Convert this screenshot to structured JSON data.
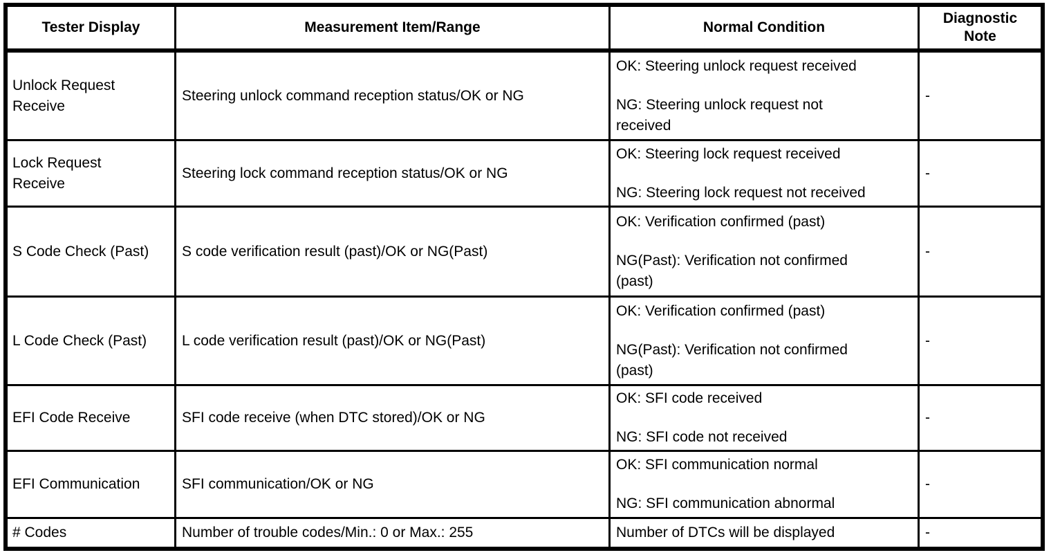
{
  "colors": {
    "border": "#000000",
    "background": "#ffffff",
    "text": "#000000"
  },
  "header": {
    "columns": [
      "Tester Display",
      "Measurement Item/Range",
      "Normal Condition",
      "Diagnostic Note"
    ]
  },
  "rows": [
    {
      "tester_display": "Unlock Request Receive",
      "measurement_item_range": "Steering unlock command reception status/OK or NG",
      "normal_condition": [
        "OK: Steering unlock request received",
        "NG: Steering unlock request not received"
      ],
      "diagnostic_note": "-"
    },
    {
      "tester_display": "Lock Request Receive",
      "measurement_item_range": "Steering lock command reception status/OK or NG",
      "normal_condition": [
        "OK: Steering lock request received",
        "NG: Steering lock request not received"
      ],
      "diagnostic_note": "-"
    },
    {
      "tester_display": "S Code Check (Past)",
      "measurement_item_range": "S code verification result (past)/OK or NG(Past)",
      "normal_condition": [
        "OK: Verification confirmed (past)",
        "NG(Past): Verification not confirmed (past)"
      ],
      "diagnostic_note": "-"
    },
    {
      "tester_display": "L Code Check (Past)",
      "measurement_item_range": "L code verification result (past)/OK or NG(Past)",
      "normal_condition": [
        "OK: Verification confirmed (past)",
        "NG(Past): Verification not confirmed (past)"
      ],
      "diagnostic_note": "-"
    },
    {
      "tester_display": "EFI Code Receive",
      "measurement_item_range": "SFI code receive (when DTC stored)/OK or NG",
      "normal_condition": [
        "OK: SFI code received",
        "NG: SFI code not received"
      ],
      "diagnostic_note": "-"
    },
    {
      "tester_display": "EFI Communication",
      "measurement_item_range": "SFI communication/OK or NG",
      "normal_condition": [
        "OK: SFI communication normal",
        "NG: SFI communication abnormal"
      ],
      "diagnostic_note": "-"
    },
    {
      "tester_display": "# Codes",
      "measurement_item_range": "Number of trouble codes/Min.: 0 or Max.: 255",
      "normal_condition": [
        "Number of DTCs will be displayed"
      ],
      "diagnostic_note": "-"
    }
  ]
}
